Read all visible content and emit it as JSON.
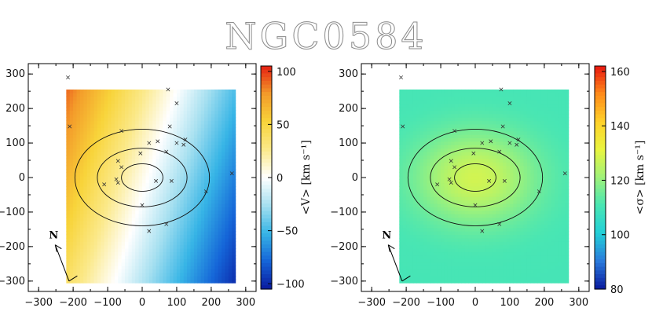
{
  "title": "NGC0584",
  "north_label": "N",
  "chart_data": [
    {
      "type": "heatmap",
      "name": "velocity",
      "xlim": [
        -330,
        330
      ],
      "ylim": [
        -330,
        330
      ],
      "x_ticks": [
        -300,
        -200,
        -100,
        0,
        100,
        200,
        300
      ],
      "y_ticks": [
        -300,
        -200,
        -100,
        0,
        100,
        200,
        300
      ],
      "x_tick_labels": [
        "−300",
        "−200",
        "−100",
        "0",
        "100",
        "200",
        "300"
      ],
      "y_tick_labels": [
        "−300",
        "−200",
        "−100",
        "0",
        "100",
        "200",
        "300"
      ],
      "field_x": [
        -220,
        270
      ],
      "field_y": [
        -305,
        250
      ],
      "colorbar": {
        "label": "<V> [km s⁻¹]",
        "range": [
          -105,
          105
        ],
        "ticks": [
          100,
          50,
          0,
          -50,
          -100
        ],
        "tick_labels": [
          "100",
          "50",
          "0",
          "−50",
          "−100"
        ],
        "colormap": "diverging"
      },
      "value_model": {
        "center": 0,
        "gradient_x": -0.28,
        "gradient_y": 0.09,
        "offset": 5
      },
      "isophotes": [
        [
          60,
          40
        ],
        [
          130,
          85
        ],
        [
          195,
          140
        ]
      ],
      "markers": [
        [
          -215,
          290
        ],
        [
          -210,
          148
        ],
        [
          -60,
          135
        ],
        [
          75,
          255
        ],
        [
          100,
          215
        ],
        [
          80,
          148
        ],
        [
          120,
          95
        ],
        [
          125,
          110
        ],
        [
          100,
          100
        ],
        [
          20,
          100
        ],
        [
          45,
          105
        ],
        [
          -70,
          48
        ],
        [
          -60,
          30
        ],
        [
          -5,
          70
        ],
        [
          70,
          75
        ],
        [
          -75,
          -5
        ],
        [
          -70,
          -15
        ],
        [
          -110,
          -20
        ],
        [
          40,
          -10
        ],
        [
          85,
          -10
        ],
        [
          185,
          -40
        ],
        [
          260,
          12
        ],
        [
          0,
          -80
        ],
        [
          70,
          -135
        ],
        [
          20,
          -155
        ]
      ]
    },
    {
      "type": "heatmap",
      "name": "dispersion",
      "xlim": [
        -330,
        330
      ],
      "ylim": [
        -330,
        330
      ],
      "x_ticks": [
        -300,
        -200,
        -100,
        0,
        100,
        200,
        300
      ],
      "y_ticks": [
        -300,
        -200,
        -100,
        0,
        100,
        200,
        300
      ],
      "x_tick_labels": [
        "−300",
        "−200",
        "−100",
        "0",
        "100",
        "200",
        "300"
      ],
      "y_tick_labels": [
        "−300",
        "−200",
        "−100",
        "0",
        "100",
        "200",
        "300"
      ],
      "field_x": [
        -220,
        270
      ],
      "field_y": [
        -305,
        250
      ],
      "colorbar": {
        "label": "<σ> [km s⁻¹]",
        "range": [
          80,
          162
        ],
        "ticks": [
          160,
          140,
          120,
          100,
          80
        ],
        "tick_labels": [
          "160",
          "140",
          "120",
          "100",
          "80"
        ],
        "colormap": "rainbow"
      },
      "value_model": {
        "center": 128,
        "outer": 110
      },
      "isophotes": [
        [
          60,
          40
        ],
        [
          130,
          85
        ],
        [
          195,
          140
        ]
      ],
      "markers": [
        [
          -215,
          290
        ],
        [
          -210,
          148
        ],
        [
          -60,
          135
        ],
        [
          75,
          255
        ],
        [
          100,
          215
        ],
        [
          80,
          148
        ],
        [
          120,
          95
        ],
        [
          125,
          110
        ],
        [
          100,
          100
        ],
        [
          20,
          100
        ],
        [
          45,
          105
        ],
        [
          -70,
          48
        ],
        [
          -60,
          30
        ],
        [
          -5,
          70
        ],
        [
          70,
          75
        ],
        [
          -75,
          -5
        ],
        [
          -70,
          -15
        ],
        [
          -110,
          -20
        ],
        [
          40,
          -10
        ],
        [
          85,
          -10
        ],
        [
          185,
          -40
        ],
        [
          260,
          12
        ],
        [
          0,
          -80
        ],
        [
          70,
          -135
        ],
        [
          20,
          -155
        ]
      ]
    }
  ],
  "colors": {
    "diverging": [
      "#0a1a9e",
      "#1565d8",
      "#37b5e6",
      "#a6e0f0",
      "#ffffff",
      "#fbe98a",
      "#f8d43a",
      "#f39a2a",
      "#e52012"
    ],
    "rainbow": [
      "#0a1a9e",
      "#2a7bdc",
      "#22d0d8",
      "#49e6b3",
      "#9ff27a",
      "#e9f540",
      "#ffd22a",
      "#ff8b1a",
      "#e8160f"
    ]
  }
}
